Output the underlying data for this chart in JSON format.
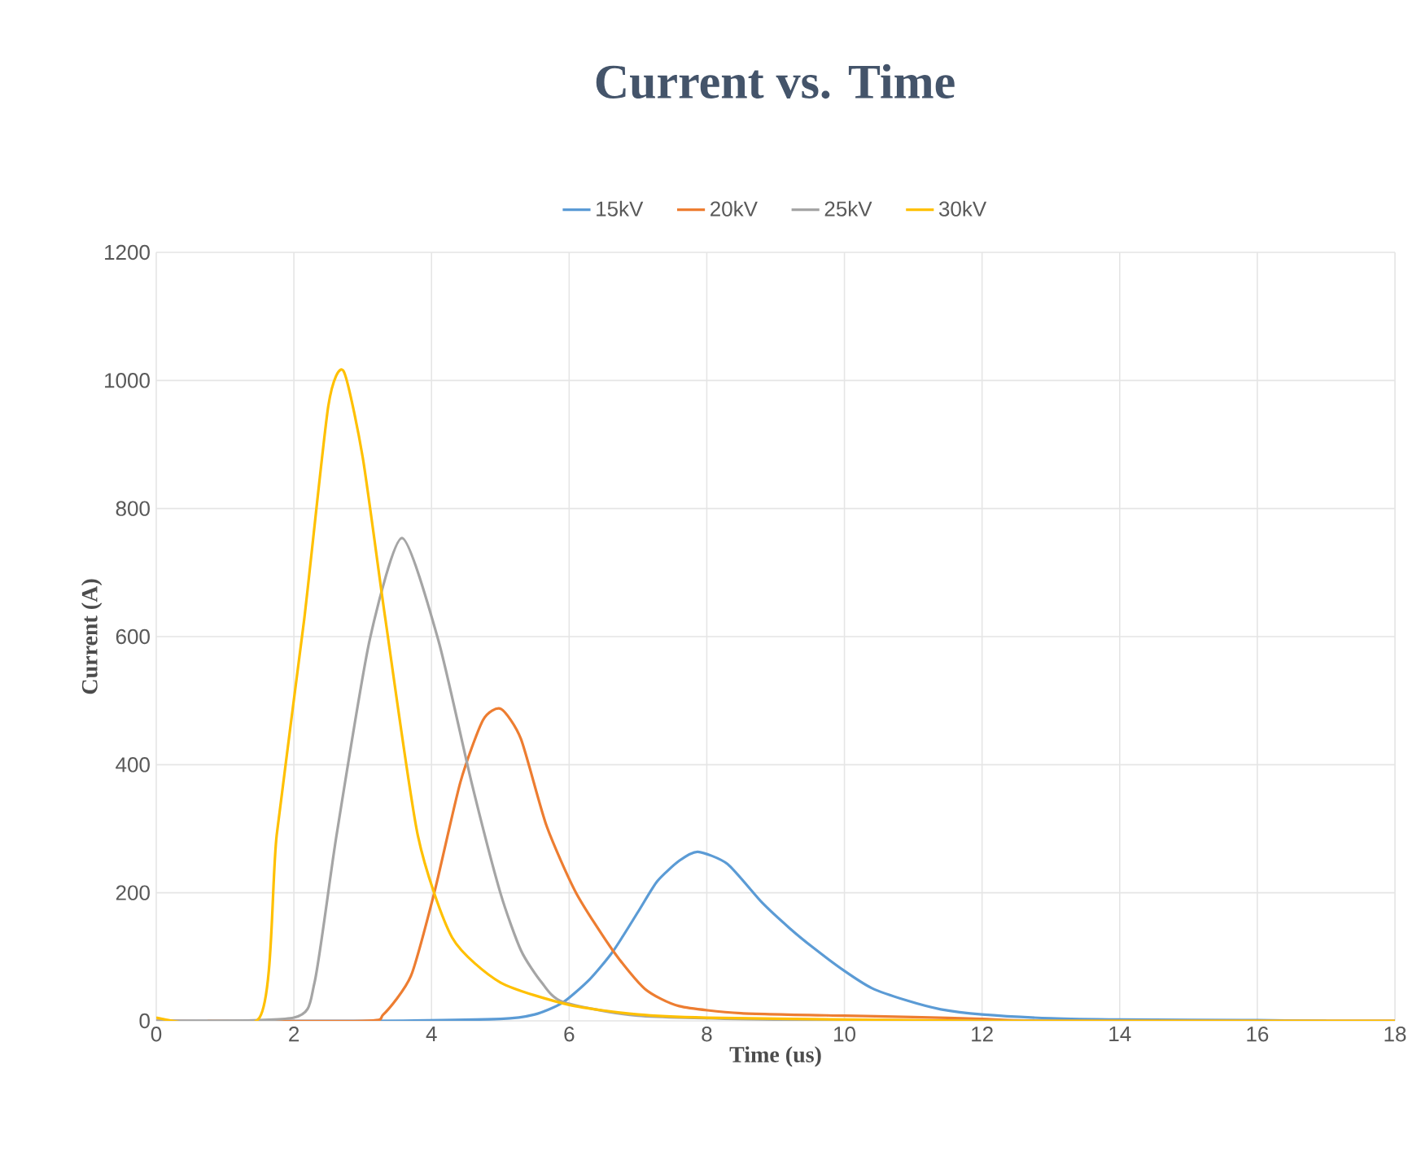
{
  "chart_data": {
    "type": "line",
    "title": "Current vs. Time",
    "xlabel": "Time (us)",
    "ylabel": "Current (A)",
    "xlim": [
      0,
      18
    ],
    "xticks": [
      0,
      2,
      4,
      6,
      8,
      10,
      12,
      14,
      16,
      18
    ],
    "ylim": [
      0,
      1200
    ],
    "yticks": [
      0,
      200,
      400,
      600,
      800,
      1000,
      1200
    ],
    "grid": true,
    "legend": "top",
    "marker": "none",
    "line_style": "solid",
    "series": [
      {
        "name": "15kV",
        "color": "#5b9bd5",
        "x": [
          0,
          3,
          5,
          5.5,
          5.9,
          6.3,
          6.64,
          7.0,
          7.28,
          7.6,
          7.87,
          8.3,
          8.8,
          9.2,
          9.55,
          10.0,
          10.4,
          10.9,
          11.4,
          12,
          13,
          14,
          16,
          17
        ],
        "values": [
          0,
          0,
          3,
          10,
          28,
          65,
          109,
          170,
          218,
          250,
          264,
          245,
          185,
          145,
          114,
          78,
          51,
          32,
          18,
          10,
          4,
          2,
          1,
          0
        ]
      },
      {
        "name": "20kV",
        "color": "#ed7d31",
        "x": [
          0,
          3.0,
          3.3,
          3.7,
          4.04,
          4.42,
          4.75,
          5.01,
          5.3,
          5.67,
          6.1,
          6.64,
          7.1,
          7.6,
          8.5,
          10,
          11,
          12,
          13,
          18
        ],
        "values": [
          0,
          0,
          10,
          70,
          200,
          373,
          470,
          487,
          440,
          305,
          200,
          109,
          50,
          23,
          12,
          8,
          6,
          3,
          0,
          0
        ]
      },
      {
        "name": "25kV",
        "color": "#a5a5a5",
        "x": [
          0,
          2.0,
          2.3,
          2.62,
          3.1,
          3.57,
          4.1,
          4.58,
          5.0,
          5.3,
          5.6,
          5.9,
          7,
          9,
          12,
          18
        ],
        "values": [
          0,
          5,
          60,
          290,
          594,
          754,
          594,
          373,
          200,
          110,
          60,
          30,
          8,
          2,
          0,
          0
        ]
      },
      {
        "name": "30kV",
        "color": "#ffc000",
        "x": [
          0,
          1.5,
          1.75,
          2.15,
          2.5,
          2.72,
          3.0,
          3.33,
          3.8,
          4.3,
          5,
          6,
          7,
          8,
          10,
          12,
          18
        ],
        "values": [
          5,
          5,
          290,
          627,
          960,
          1015,
          880,
          627,
          290,
          130,
          60,
          25,
          10,
          5,
          2,
          0,
          0
        ]
      }
    ]
  }
}
